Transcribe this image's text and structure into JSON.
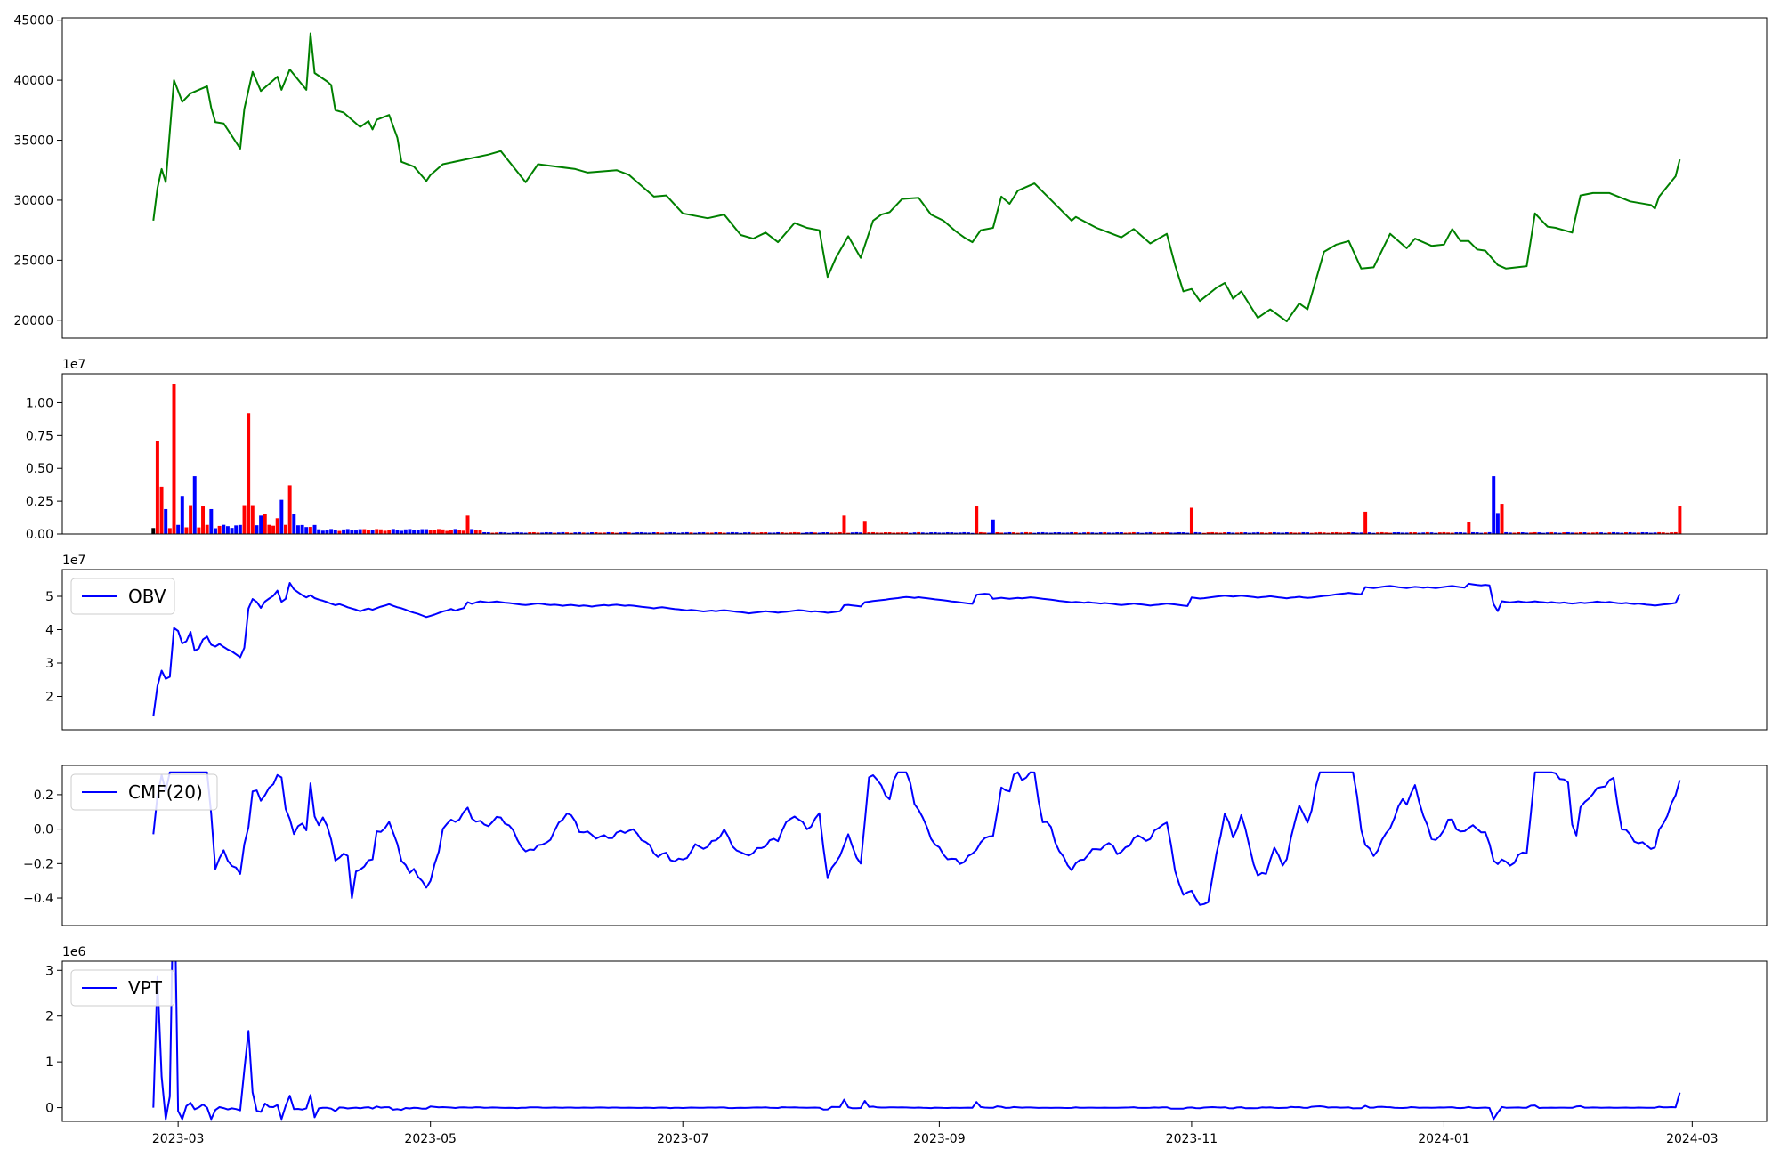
{
  "figure": {
    "background": "#ffffff"
  },
  "chart_data": [
    {
      "type": "line",
      "x_type": "date",
      "xlim": [
        "2023-02-01",
        "2024-03-19"
      ],
      "ylim": [
        18500,
        45200
      ],
      "yticks": [
        20000,
        25000,
        30000,
        35000,
        40000,
        45000
      ],
      "ytick_labels": [
        "20000",
        "25000",
        "30000",
        "35000",
        "40000",
        "45000"
      ],
      "series": [
        {
          "color": "#008000",
          "x": [
            "2023-02-23",
            "2023-02-24",
            "2023-02-25",
            "2023-02-26",
            "2023-02-28",
            "2023-03-02",
            "2023-03-04",
            "2023-03-08",
            "2023-03-09",
            "2023-03-10",
            "2023-03-12",
            "2023-03-16",
            "2023-03-17",
            "2023-03-19",
            "2023-03-21",
            "2023-03-25",
            "2023-03-26",
            "2023-03-28",
            "2023-04-01",
            "2023-04-02",
            "2023-04-03",
            "2023-04-06",
            "2023-04-07",
            "2023-04-08",
            "2023-04-10",
            "2023-04-14",
            "2023-04-16",
            "2023-04-17",
            "2023-04-18",
            "2023-04-21",
            "2023-04-23",
            "2023-04-24",
            "2023-04-27",
            "2023-04-30",
            "2023-05-01",
            "2023-05-04",
            "2023-05-15",
            "2023-05-18",
            "2023-05-24",
            "2023-05-27",
            "2023-06-05",
            "2023-06-08",
            "2023-06-15",
            "2023-06-18",
            "2023-06-24",
            "2023-06-27",
            "2023-07-01",
            "2023-07-07",
            "2023-07-11",
            "2023-07-15",
            "2023-07-18",
            "2023-07-21",
            "2023-07-24",
            "2023-07-28",
            "2023-07-31",
            "2023-08-03",
            "2023-08-05",
            "2023-08-07",
            "2023-08-10",
            "2023-08-13",
            "2023-08-16",
            "2023-08-18",
            "2023-08-20",
            "2023-08-23",
            "2023-08-27",
            "2023-08-30",
            "2023-09-02",
            "2023-09-05",
            "2023-09-07",
            "2023-09-09",
            "2023-09-11",
            "2023-09-14",
            "2023-09-16",
            "2023-09-18",
            "2023-09-20",
            "2023-09-24",
            "2023-10-03",
            "2023-10-04",
            "2023-10-09",
            "2023-10-12",
            "2023-10-15",
            "2023-10-18",
            "2023-10-20",
            "2023-10-22",
            "2023-10-26",
            "2023-10-28",
            "2023-10-30",
            "2023-11-01",
            "2023-11-03",
            "2023-11-07",
            "2023-11-09",
            "2023-11-10",
            "2023-11-11",
            "2023-11-13",
            "2023-11-17",
            "2023-11-20",
            "2023-11-24",
            "2023-11-27",
            "2023-11-29",
            "2023-12-03",
            "2023-12-06",
            "2023-12-09",
            "2023-12-12",
            "2023-12-15",
            "2023-12-19",
            "2023-12-23",
            "2023-12-25",
            "2023-12-29",
            "2024-01-01",
            "2024-01-03",
            "2024-01-05",
            "2024-01-07",
            "2024-01-09",
            "2024-01-11",
            "2024-01-14",
            "2024-01-16",
            "2024-01-21",
            "2024-01-23",
            "2024-01-26",
            "2024-01-28",
            "2024-02-01",
            "2024-02-03",
            "2024-02-06",
            "2024-02-10",
            "2024-02-15",
            "2024-02-20",
            "2024-02-21",
            "2024-02-22",
            "2024-02-26",
            "2024-02-27"
          ],
          "y": [
            28300,
            31000,
            32600,
            31500,
            40000,
            38200,
            38900,
            39500,
            37700,
            36500,
            36400,
            34300,
            37600,
            40700,
            39100,
            40300,
            39200,
            40900,
            39200,
            43900,
            40600,
            39900,
            39600,
            37500,
            37300,
            36100,
            36600,
            35900,
            36700,
            37100,
            35200,
            33200,
            32800,
            31600,
            32100,
            33000,
            33800,
            34100,
            31500,
            33000,
            32600,
            32300,
            32500,
            32100,
            30300,
            30400,
            28900,
            28500,
            28800,
            27100,
            26800,
            27300,
            26500,
            28100,
            27700,
            27500,
            23600,
            25200,
            27000,
            25200,
            28300,
            28800,
            29000,
            30100,
            30200,
            28800,
            28300,
            27400,
            26900,
            26500,
            27500,
            27700,
            30300,
            29700,
            30800,
            31400,
            28300,
            28600,
            27700,
            27300,
            26900,
            27600,
            27000,
            26400,
            27200,
            24600,
            22400,
            22600,
            21600,
            22700,
            23100,
            22500,
            21800,
            22400,
            20200,
            20900,
            19900,
            21400,
            20900,
            25700,
            26300,
            26600,
            24300,
            24400,
            27200,
            26000,
            26800,
            26200,
            26300,
            27600,
            26600,
            26600,
            25900,
            25800,
            24600,
            24300,
            24500,
            28900,
            27800,
            27700,
            27300,
            30400,
            30600,
            30600,
            29900,
            29600,
            29300,
            30300,
            32000,
            33400
          ],
          "note": ""
        }
      ]
    },
    {
      "type": "bar",
      "x_type": "date",
      "xlim": [
        "2023-02-01",
        "2024-03-19"
      ],
      "ylim": [
        0,
        12200000
      ],
      "y_offset_label": "1e7",
      "yticks": [
        0,
        2500000,
        5000000,
        7500000,
        10000000
      ],
      "ytick_labels": [
        "0.00",
        "0.25",
        "0.50",
        "0.75",
        "1.00"
      ],
      "up_color": "#ff0000",
      "down_color": "#0000ff",
      "neutral_color": "#000000",
      "bars": []
    },
    {
      "type": "line",
      "x_type": "date",
      "xlim": [
        "2023-02-01",
        "2024-03-19"
      ],
      "ylim": [
        10000000,
        58000000
      ],
      "y_offset_label": "1e7",
      "yticks": [
        20000000,
        30000000,
        40000000,
        50000000
      ],
      "ytick_labels": [
        "2",
        "3",
        "4",
        "5"
      ],
      "legend": {
        "position": "top-left",
        "entries": [
          "OBV"
        ]
      },
      "series": [
        {
          "name": "OBV",
          "color": "#0000ff",
          "x": [],
          "y": []
        }
      ]
    },
    {
      "type": "line",
      "x_type": "date",
      "xlim": [
        "2023-02-01",
        "2024-03-19"
      ],
      "ylim": [
        -0.56,
        0.37
      ],
      "yticks": [
        -0.4,
        -0.2,
        0.0,
        0.2
      ],
      "ytick_labels": [
        "−0.4",
        "−0.2",
        "0.0",
        "0.2"
      ],
      "legend": {
        "position": "top-left",
        "entries": [
          "CMF(20)"
        ]
      },
      "series": [
        {
          "name": "CMF(20)",
          "color": "#0000ff",
          "x": [],
          "y": []
        }
      ]
    },
    {
      "type": "line",
      "x_type": "date",
      "xlim": [
        "2023-02-01",
        "2024-03-19"
      ],
      "ylim": [
        -300000,
        3200000
      ],
      "y_offset_label": "1e6",
      "yticks": [
        0,
        1000000,
        2000000,
        3000000
      ],
      "ytick_labels": [
        "0",
        "1",
        "2",
        "3"
      ],
      "xticks": [
        "2023-03-01",
        "2023-05-01",
        "2023-07-01",
        "2023-09-01",
        "2023-11-01",
        "2024-01-01",
        "2024-03-01"
      ],
      "xtick_labels": [
        "2023-03",
        "2023-05",
        "2023-07",
        "2023-09",
        "2023-11",
        "2024-01",
        "2024-03"
      ],
      "legend": {
        "position": "top-left",
        "entries": [
          "VPT"
        ]
      },
      "series": [
        {
          "name": "VPT",
          "color": "#0000ff",
          "x": [],
          "y": []
        }
      ]
    }
  ]
}
